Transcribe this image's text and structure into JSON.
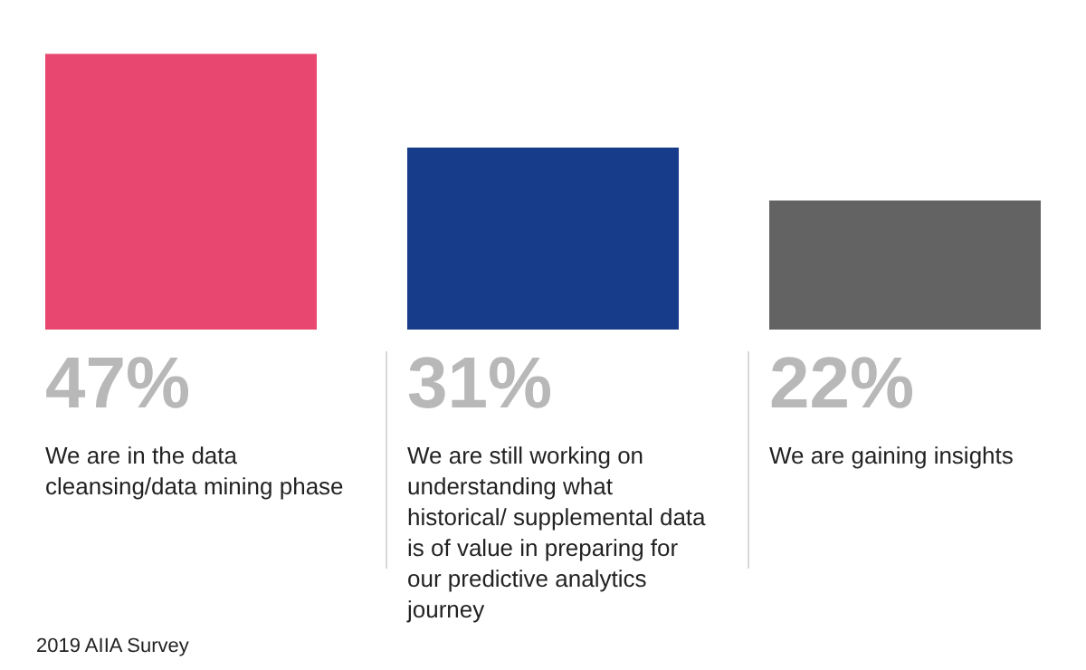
{
  "chart_data": {
    "type": "bar",
    "categories": [
      "We are in the data cleansing/data mining phase",
      "We are still working on understanding what historical/ supplemental data is of value in preparing for our predictive analytics journey",
      "We are gaining insights"
    ],
    "values": [
      47,
      31,
      22
    ],
    "colors": [
      "#e8476f",
      "#173c8a",
      "#636363"
    ],
    "value_labels": [
      "47%",
      "31%",
      "22%"
    ],
    "annotations": [
      "2019 AIIA Survey"
    ]
  }
}
